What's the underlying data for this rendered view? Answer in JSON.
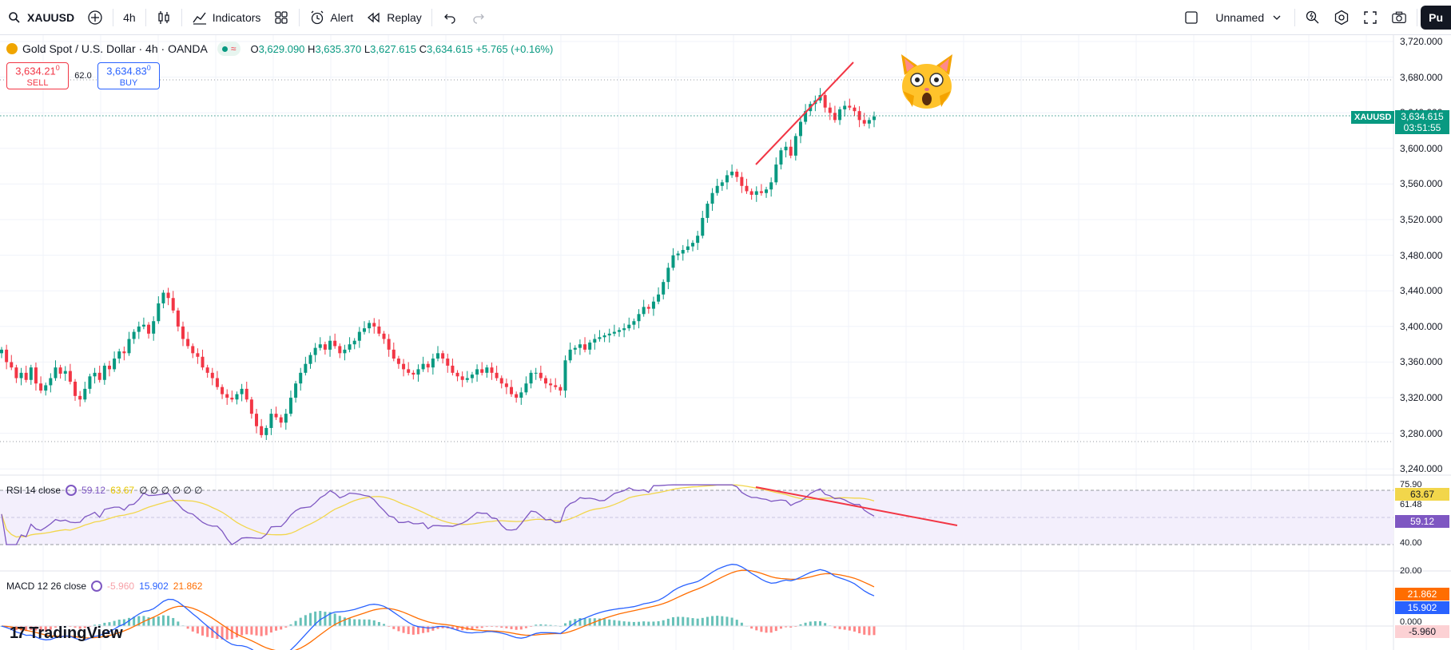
{
  "toolbar": {
    "symbol": "XAUUSD",
    "interval": "4h",
    "indicators_label": "Indicators",
    "alert_label": "Alert",
    "replay_label": "Replay",
    "layout_name": "Unnamed",
    "publish_label": "Pu"
  },
  "legend": {
    "title": "Gold Spot / U.S. Dollar · 4h · OANDA",
    "open_key": "O",
    "open": "3,629.090",
    "high_key": "H",
    "high": "3,635.370",
    "low_key": "L",
    "low": "3,627.615",
    "close_key": "C",
    "close": "3,634.615",
    "change": "+5.765 (+0.16%)"
  },
  "trade": {
    "sell_price": "3,634.21",
    "sell_sup": "0",
    "sell_label": "SELL",
    "spread": "62.0",
    "buy_price": "3,634.83",
    "buy_sup": "0",
    "buy_label": "BUY"
  },
  "rsi_legend": {
    "name": "RSI 14 close",
    "value": "59.12",
    "ma_value": "63.67",
    "extras": "∅ ∅ ∅ ∅ ∅ ∅"
  },
  "macd_legend": {
    "name": "MACD 12 26 close",
    "hist": "-5.960",
    "macd": "15.902",
    "signal": "21.862"
  },
  "price_axis": {
    "ticks": [
      "3,720.000",
      "3,680.000",
      "3,640.000",
      "3,600.000",
      "3,560.000",
      "3,520.000",
      "3,480.000",
      "3,440.000",
      "3,400.000",
      "3,360.000",
      "3,320.000",
      "3,280.000",
      "3,240.000"
    ],
    "last_price": "3,634.615",
    "countdown": "03:51:55",
    "symbol_tag": "XAUUSD"
  },
  "rsi_axis": {
    "ticks": [
      "75.90",
      "61.48",
      "40.00",
      "20.00"
    ],
    "ma_tag": "63.67",
    "rsi_tag": "59.12"
  },
  "macd_axis": {
    "zero": "0.000",
    "signal_tag": "21.862",
    "macd_tag": "15.902",
    "hist_tag": "-5.960"
  },
  "brand": {
    "name": "TradingView",
    "logo": "17"
  },
  "colors": {
    "up": "#089981",
    "down": "#f23645",
    "rsi": "#7e57c2",
    "rsi_ma": "#f2d64b",
    "macd": "#2962ff",
    "signal": "#ff6d00",
    "trendline": "#f23645"
  },
  "chart_data": {
    "type": "candlestick",
    "price_range": [
      3240,
      3720
    ],
    "closes": [
      3372,
      3358,
      3352,
      3340,
      3346,
      3338,
      3352,
      3334,
      3326,
      3332,
      3340,
      3352,
      3345,
      3348,
      3336,
      3320,
      3316,
      3328,
      3342,
      3346,
      3338,
      3354,
      3350,
      3362,
      3370,
      3368,
      3384,
      3392,
      3398,
      3400,
      3390,
      3404,
      3424,
      3436,
      3430,
      3416,
      3398,
      3384,
      3376,
      3368,
      3364,
      3352,
      3346,
      3340,
      3330,
      3322,
      3318,
      3316,
      3322,
      3328,
      3316,
      3300,
      3286,
      3276,
      3284,
      3300,
      3296,
      3290,
      3300,
      3318,
      3334,
      3346,
      3356,
      3366,
      3374,
      3378,
      3372,
      3382,
      3376,
      3368,
      3372,
      3378,
      3382,
      3392,
      3396,
      3402,
      3398,
      3390,
      3384,
      3372,
      3362,
      3356,
      3350,
      3346,
      3344,
      3350,
      3356,
      3352,
      3362,
      3368,
      3362,
      3354,
      3346,
      3342,
      3338,
      3340,
      3344,
      3350,
      3346,
      3352,
      3346,
      3340,
      3334,
      3330,
      3322,
      3318,
      3324,
      3334,
      3346,
      3346,
      3340,
      3334,
      3332,
      3330,
      3326,
      3360,
      3372,
      3374,
      3378,
      3372,
      3380,
      3384,
      3386,
      3388,
      3390,
      3392,
      3394,
      3396,
      3400,
      3404,
      3412,
      3420,
      3418,
      3426,
      3434,
      3448,
      3464,
      3478,
      3480,
      3484,
      3488,
      3492,
      3500,
      3520,
      3536,
      3548,
      3556,
      3560,
      3568,
      3572,
      3566,
      3556,
      3550,
      3546,
      3550,
      3548,
      3552,
      3560,
      3580,
      3596,
      3600,
      3590,
      3612,
      3628,
      3640,
      3648,
      3652,
      3658,
      3644,
      3638,
      3630,
      3642,
      3646,
      3644,
      3640,
      3630,
      3626,
      3630,
      3634
    ]
  }
}
